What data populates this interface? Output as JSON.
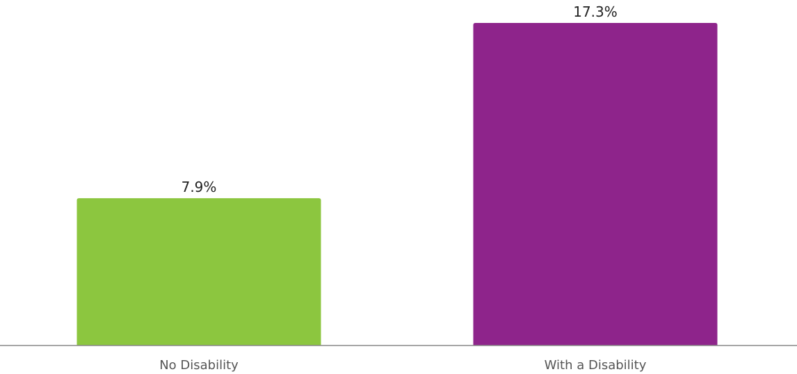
{
  "chart_data": {
    "type": "bar",
    "categories": [
      "No Disability",
      "With a Disability"
    ],
    "values": [
      7.9,
      17.3
    ],
    "value_labels": [
      "7.9%",
      "17.3%"
    ],
    "colors": [
      "#8cc63f",
      "#8e248b"
    ],
    "ylim": [
      0,
      17.3
    ],
    "grid": false,
    "legend": "none"
  }
}
